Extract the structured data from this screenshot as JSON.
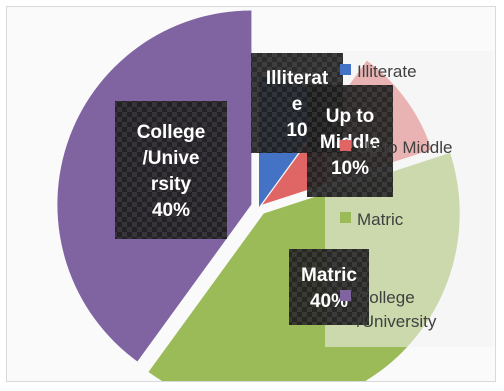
{
  "chart_data": {
    "type": "pie",
    "categories": [
      "Illiterate",
      "Up to Middle",
      "Matric",
      "College /University"
    ],
    "values": [
      10,
      10,
      40,
      40
    ],
    "value_unit": "%",
    "data_labels": [
      [
        "Illiterat",
        "e",
        "10"
      ],
      [
        "Up to",
        "Middle",
        "10%"
      ],
      [
        "Matric",
        "40%"
      ],
      [
        "College",
        "/Unive",
        "rsity",
        "40%"
      ]
    ],
    "legend_labels": [
      [
        "Illiterate"
      ],
      [
        "Up to Middle"
      ],
      [
        "Matric"
      ],
      [
        "College",
        "/University"
      ]
    ],
    "colors": [
      "#4472c4",
      "#e06666",
      "#9bbb59",
      "#8064a2"
    ],
    "legend_position": "right"
  }
}
